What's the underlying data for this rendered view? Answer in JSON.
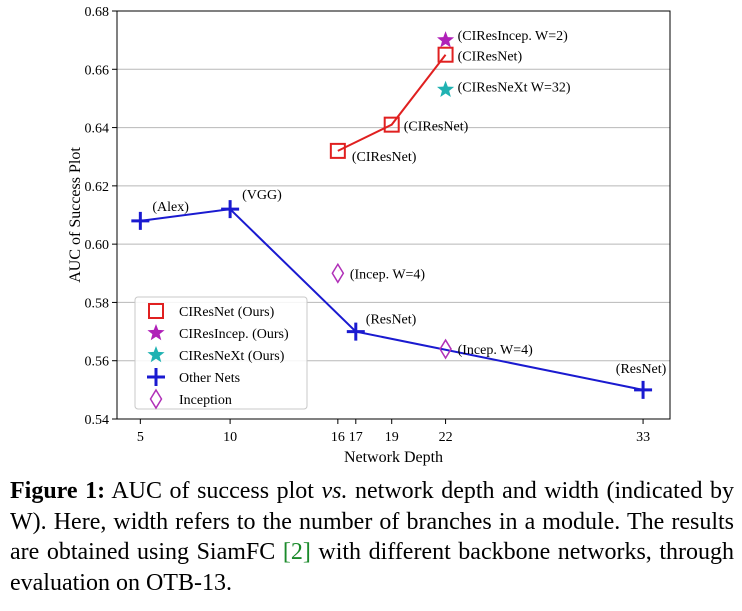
{
  "chart_data": {
    "type": "line",
    "xlabel": "Network Depth",
    "ylabel": "AUC of Success Plot",
    "xlim": [
      3.7,
      34.5
    ],
    "ylim": [
      0.54,
      0.68
    ],
    "xticks": [
      5,
      10,
      16,
      17,
      19,
      22,
      33
    ],
    "xtick_labels": [
      "5",
      "10",
      "16",
      "17",
      "19",
      "22",
      "33"
    ],
    "yticks": [
      0.54,
      0.56,
      0.58,
      0.6,
      0.62,
      0.64,
      0.66,
      0.68
    ],
    "ytick_labels": [
      "0.54",
      "0.56",
      "0.58",
      "0.60",
      "0.62",
      "0.64",
      "0.66",
      "0.68"
    ],
    "grid": "horizontal",
    "legend_position": "lower-left",
    "series": [
      {
        "name": "CIResNet (Ours)",
        "marker": "square",
        "line": true,
        "color": "#e02020",
        "points": [
          {
            "x": 16,
            "y": 0.632,
            "label": "(CIResNet)"
          },
          {
            "x": 19,
            "y": 0.641,
            "label": "(CIResNet)"
          },
          {
            "x": 22,
            "y": 0.665,
            "label": "(CIResNet)"
          }
        ]
      },
      {
        "name": "CIResIncep. (Ours)",
        "marker": "star",
        "line": false,
        "color": "#b020b8",
        "points": [
          {
            "x": 22,
            "y": 0.67,
            "label": "(CIResIncep. W=2)"
          }
        ]
      },
      {
        "name": "CIResNeXt (Ours)",
        "marker": "star",
        "line": false,
        "color": "#20b2b2",
        "points": [
          {
            "x": 22,
            "y": 0.653,
            "label": "(CIResNeXt W=32)"
          }
        ]
      },
      {
        "name": "Other Nets",
        "marker": "plus",
        "line": true,
        "color": "#1a1ad0",
        "points": [
          {
            "x": 5,
            "y": 0.608,
            "label": "(Alex)"
          },
          {
            "x": 10,
            "y": 0.612,
            "label": "(VGG)"
          },
          {
            "x": 17,
            "y": 0.57,
            "label": "(ResNet)"
          },
          {
            "x": 33,
            "y": 0.55,
            "label": "(ResNet)"
          }
        ]
      },
      {
        "name": "Inception",
        "marker": "diamond",
        "line": false,
        "color": "#b030b8",
        "points": [
          {
            "x": 16,
            "y": 0.59,
            "label": "(Incep. W=4)"
          },
          {
            "x": 22,
            "y": 0.564,
            "label": "(Incep. W=4)"
          }
        ]
      }
    ]
  },
  "caption": {
    "label": "Figure 1:",
    "text_1": "AUC of success plot",
    "text_vs": "vs.",
    "text_2": "network depth and width (indicated by W). Here, width refers to the number of branches in a module. The results are obtained using SiamFC",
    "ref": "[2]",
    "text_3": "with different backbone networks, through evaluation on OTB-13."
  }
}
